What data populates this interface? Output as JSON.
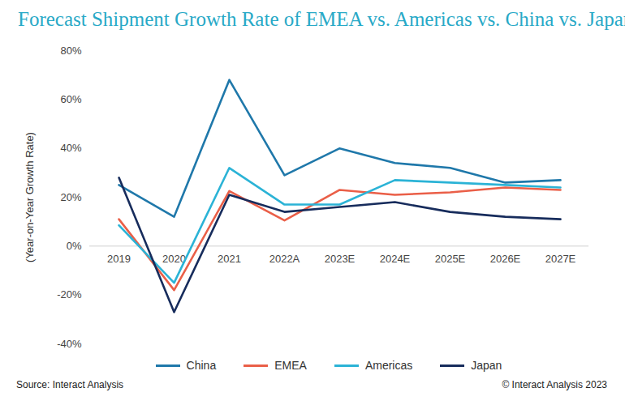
{
  "chart_data": {
    "type": "line",
    "title": "Forecast Shipment Growth Rate of EMEA vs. Americas vs. China vs. Japan",
    "y_label": "(Year-on-Year Growth Rate)",
    "source": "Source: Interact Analysis",
    "credit": "© Interact Analysis 2023",
    "categories": [
      "2019",
      "2020",
      "2021",
      "2022A",
      "2023E",
      "2024E",
      "2025E",
      "2026E",
      "2027E"
    ],
    "series": [
      {
        "name": "China",
        "color": "#1f78aa",
        "values": [
          25,
          12,
          68,
          29,
          40,
          34,
          32,
          26,
          27
        ]
      },
      {
        "name": "EMEA",
        "color": "#ea5f48",
        "values": [
          11,
          -18,
          22.5,
          10.5,
          23,
          21,
          22,
          24,
          23
        ]
      },
      {
        "name": "Americas",
        "color": "#2bb3d6",
        "values": [
          8.5,
          -15,
          32,
          17,
          17,
          27,
          26,
          25,
          24
        ]
      },
      {
        "name": "Japan",
        "color": "#172c5c",
        "values": [
          28,
          -27,
          21,
          14,
          16,
          18,
          14,
          12,
          11
        ]
      }
    ],
    "ylim": [
      -40,
      80
    ],
    "yticks": [
      {
        "value": -40,
        "label": "-40%"
      },
      {
        "value": -20,
        "label": "-20%"
      },
      {
        "value": 0,
        "label": "0%"
      },
      {
        "value": 20,
        "label": "20%"
      },
      {
        "value": 40,
        "label": "40%"
      },
      {
        "value": 60,
        "label": "60%"
      },
      {
        "value": 80,
        "label": "80%"
      }
    ],
    "grid": false,
    "legend": "bottom"
  }
}
